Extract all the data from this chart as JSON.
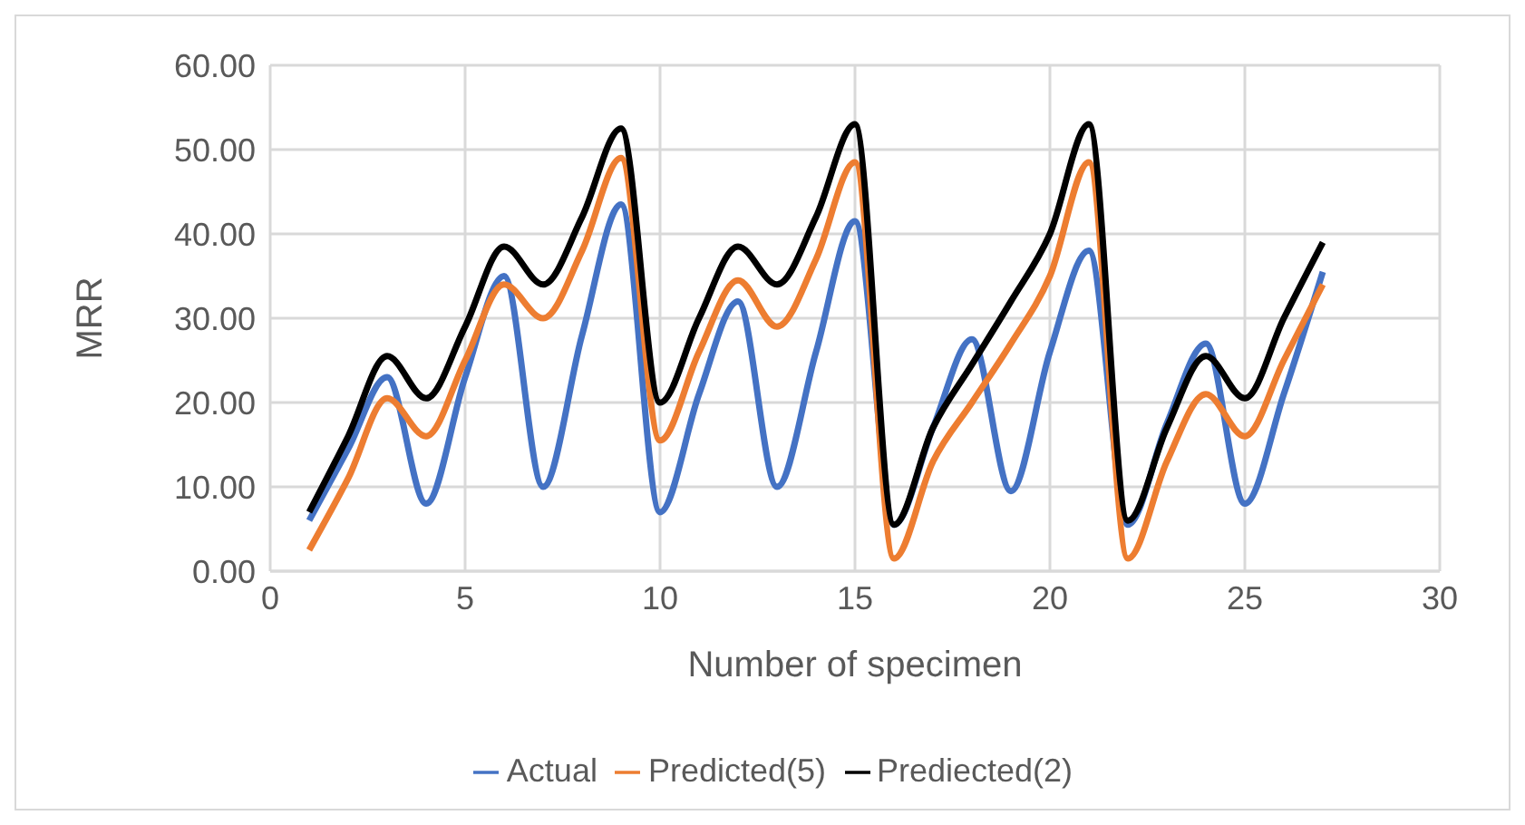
{
  "chart_data": {
    "type": "line",
    "xlabel": "Number of specimen",
    "ylabel": "MRR",
    "x": [
      1,
      2,
      3,
      4,
      5,
      6,
      7,
      8,
      9,
      10,
      11,
      12,
      13,
      14,
      15,
      16,
      17,
      18,
      19,
      20,
      21,
      22,
      23,
      24,
      25,
      26,
      27
    ],
    "series": [
      {
        "name": "Actual",
        "color": "#4472c4",
        "values": [
          6,
          14.5,
          23,
          8,
          23,
          35,
          10,
          28,
          43.5,
          7,
          21,
          32,
          10,
          26,
          41.5,
          5.5,
          17,
          27.5,
          9.5,
          26,
          38,
          5.5,
          17.5,
          27,
          8,
          21,
          35.5
        ]
      },
      {
        "name": "Predicted(5)",
        "color": "#ed7d31",
        "values": [
          2.5,
          11,
          20.5,
          16,
          25,
          34,
          30,
          38,
          49,
          15.5,
          26,
          34.5,
          29,
          37,
          48.5,
          1.5,
          13,
          20,
          27,
          35,
          48.5,
          1.5,
          13,
          21,
          16,
          25,
          34
        ]
      },
      {
        "name": "Prediected(2)",
        "color": "#000000",
        "values": [
          7,
          16,
          25.5,
          20.5,
          29,
          38.5,
          34,
          42,
          52.5,
          20,
          30,
          38.5,
          34,
          42,
          53,
          5.5,
          17,
          24.5,
          32,
          40,
          53,
          6,
          17,
          25.5,
          20.5,
          30,
          39
        ]
      }
    ],
    "xlim": [
      0,
      30
    ],
    "xticks": [
      0,
      5,
      10,
      15,
      20,
      25,
      30
    ],
    "ylim": [
      0,
      60
    ],
    "yticks": [
      {
        "value": 0,
        "label": "0.00"
      },
      {
        "value": 10,
        "label": "10.00"
      },
      {
        "value": 20,
        "label": "20.00"
      },
      {
        "value": 30,
        "label": "30.00"
      },
      {
        "value": 40,
        "label": "40.00"
      },
      {
        "value": 50,
        "label": "50.00"
      },
      {
        "value": 60,
        "label": "60.00"
      }
    ],
    "grid": true,
    "legend": "bottom",
    "marker": "none",
    "line_style": "solid"
  }
}
